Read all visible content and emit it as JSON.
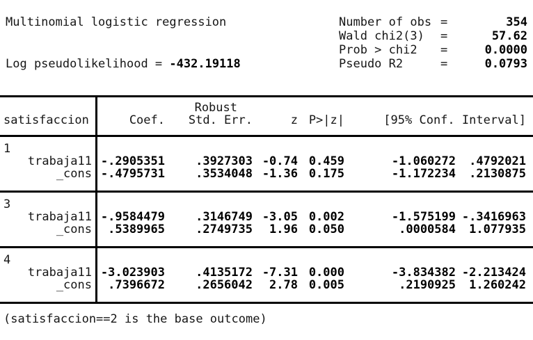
{
  "header": {
    "title": "Multinomial logistic regression",
    "loglik_label": "Log pseudolikelihood = ",
    "loglik_value": "-432.19118",
    "stats": [
      {
        "label": "Number of obs",
        "eq": "=",
        "value": "354"
      },
      {
        "label": "Wald chi2(3)",
        "eq": "=",
        "value": "57.62"
      },
      {
        "label": "Prob > chi2",
        "eq": "=",
        "value": "0.0000"
      },
      {
        "label": "Pseudo R2",
        "eq": "=",
        "value": "0.0793"
      }
    ]
  },
  "table": {
    "depvar": "satisfaccion",
    "col_headers": {
      "robust": "Robust",
      "coef": "Coef.",
      "stderr": "Std. Err.",
      "z": "z",
      "p": "P>|z|",
      "ci": "[95% Conf. Interval]"
    },
    "groups": [
      {
        "outcome": "1",
        "rows": [
          {
            "var": "trabaja11",
            "coef": "-.2905351",
            "stderr": ".3927303",
            "z": "-0.74",
            "p": "0.459",
            "ci_low": "-1.060272",
            "ci_high": ".4792021"
          },
          {
            "var": "_cons",
            "coef": "-.4795731",
            "stderr": ".3534048",
            "z": "-1.36",
            "p": "0.175",
            "ci_low": "-1.172234",
            "ci_high": ".2130875"
          }
        ]
      },
      {
        "outcome": "3",
        "rows": [
          {
            "var": "trabaja11",
            "coef": "-.9584479",
            "stderr": ".3146749",
            "z": "-3.05",
            "p": "0.002",
            "ci_low": "-1.575199",
            "ci_high": "-.3416963"
          },
          {
            "var": "_cons",
            "coef": ".5389965",
            "stderr": ".2749735",
            "z": "1.96",
            "p": "0.050",
            "ci_low": ".0000584",
            "ci_high": "1.077935"
          }
        ]
      },
      {
        "outcome": "4",
        "rows": [
          {
            "var": "trabaja11",
            "coef": "-3.023903",
            "stderr": ".4135172",
            "z": "-7.31",
            "p": "0.000",
            "ci_low": "-3.834382",
            "ci_high": "-2.213424"
          },
          {
            "var": "_cons",
            "coef": ".7396672",
            "stderr": ".2656042",
            "z": "2.78",
            "p": "0.005",
            "ci_low": ".2190925",
            "ci_high": "1.260242"
          }
        ]
      }
    ]
  },
  "footer": {
    "note": "(satisfaccion==2 is the base outcome)"
  }
}
